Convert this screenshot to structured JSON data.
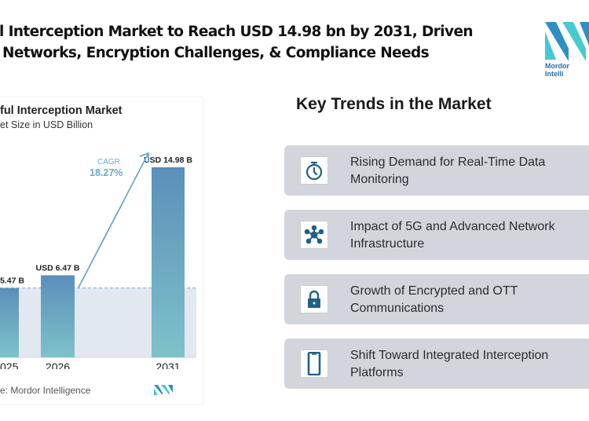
{
  "header": {
    "title_line1": "l Interception Market to Reach USD 14.98 bn by 2031, Driven",
    "title_line2": "Networks, Encryption Challenges, & Compliance Needs",
    "logo_text": "Mordor Intelli"
  },
  "chart_data": {
    "type": "bar",
    "title": "ful Interception Market",
    "subtitle": "et Size in USD Billion",
    "categories": [
      "025",
      "2026",
      "2031"
    ],
    "values": [
      5.47,
      6.47,
      14.98
    ],
    "data_labels": [
      "5.47 B",
      "USD 6.47 B",
      "USD 14.98 B"
    ],
    "ylim": [
      0,
      15
    ],
    "grid": false,
    "cagr_label": "CAGR",
    "cagr_value": "18.27%",
    "source": "e: Mordor Intelligence",
    "colors": {
      "bar_top": "#5b8fba",
      "bar_bottom": "#7ec2c9",
      "shade": "#e1e8ef",
      "cagr": "#6aa9cf"
    }
  },
  "trends": {
    "heading": "Key Trends in the Market",
    "items": [
      {
        "icon": "stopwatch-icon",
        "label": "Rising Demand for Real-Time Data Monitoring"
      },
      {
        "icon": "network-hub-icon",
        "label": "Impact of 5G and Advanced Network Infrastructure"
      },
      {
        "icon": "lock-icon",
        "label": "Growth of Encrypted and OTT Communications"
      },
      {
        "icon": "smartphone-icon",
        "label": "Shift Toward Integrated Interception Platforms"
      }
    ],
    "icon_color": "#1f6286",
    "card_color": "#d2d6dc"
  }
}
